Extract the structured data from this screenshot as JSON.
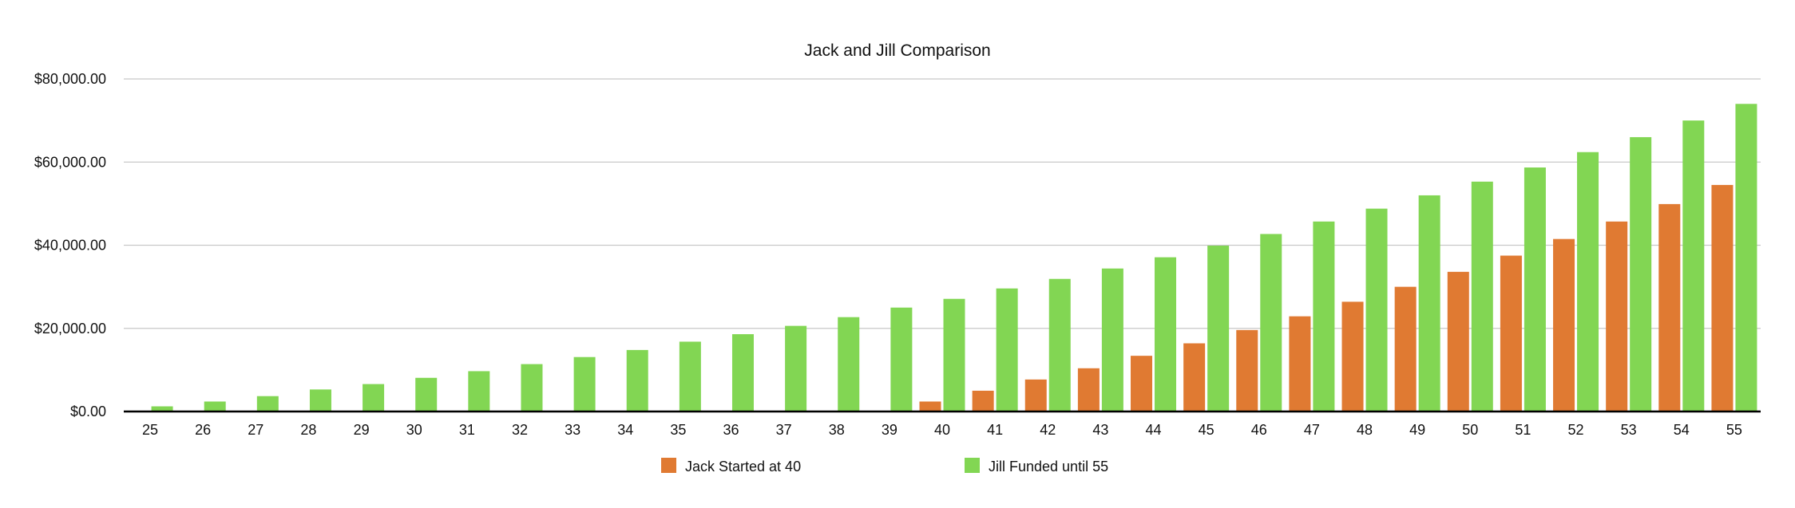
{
  "chart_data": {
    "type": "bar",
    "title": "Jack and Jill Comparison",
    "xlabel": "",
    "ylabel": "",
    "ylim": [
      0,
      80000
    ],
    "yticks": [
      0,
      20000,
      40000,
      60000,
      80000
    ],
    "ytick_labels": [
      "$0.00",
      "$20,000.00",
      "$40,000.00",
      "$60,000.00",
      "$80,000.00"
    ],
    "grid": true,
    "legend_position": "bottom-center",
    "categories": [
      "25",
      "26",
      "27",
      "28",
      "29",
      "30",
      "31",
      "32",
      "33",
      "34",
      "35",
      "36",
      "37",
      "38",
      "39",
      "40",
      "41",
      "42",
      "43",
      "44",
      "45",
      "46",
      "47",
      "48",
      "49",
      "50",
      "51",
      "52",
      "53",
      "54",
      "55"
    ],
    "series": [
      {
        "name": "Jack Started at 40",
        "color": "#e07a32",
        "values": [
          0,
          0,
          0,
          0,
          0,
          0,
          0,
          0,
          0,
          0,
          0,
          0,
          0,
          0,
          0,
          2400,
          5000,
          7700,
          10400,
          13400,
          16400,
          19600,
          22900,
          26400,
          30000,
          33600,
          37500,
          41500,
          45700,
          49900,
          54500
        ]
      },
      {
        "name": "Jill Funded until 55",
        "color": "#82d653",
        "values": [
          1240,
          2400,
          3700,
          5300,
          6600,
          8100,
          9700,
          11400,
          13100,
          14800,
          16800,
          18600,
          20600,
          22700,
          25000,
          27100,
          29600,
          31900,
          34400,
          37100,
          39900,
          42700,
          45700,
          48800,
          52000,
          55300,
          58700,
          62400,
          66000,
          70000,
          74000
        ]
      }
    ]
  }
}
